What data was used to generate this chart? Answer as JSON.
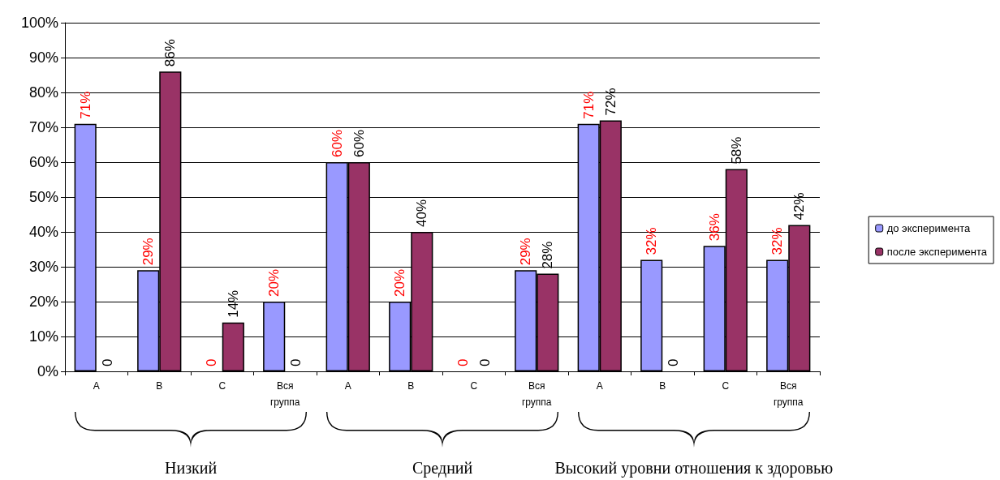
{
  "chart_data": {
    "type": "bar",
    "categories": [
      "A",
      "B",
      "C",
      "Вся группа",
      "A",
      "B",
      "C",
      "Вся группа",
      "A",
      "B",
      "C",
      "Вся группа"
    ],
    "series": [
      {
        "name": "до эксперимента",
        "color": "#9999ff",
        "values": [
          71,
          29,
          0,
          20,
          60,
          20,
          0,
          29,
          71,
          32,
          36,
          32
        ],
        "value_labels": [
          "71%",
          "29%",
          "0",
          "20%",
          "60%",
          "20%",
          "0",
          "29%",
          "71%",
          "32%",
          "36%",
          "32%"
        ]
      },
      {
        "name": "после эксперимента",
        "color": "#993366",
        "values": [
          0,
          86,
          14,
          0,
          60,
          40,
          0,
          28,
          72,
          0,
          58,
          42
        ],
        "value_labels": [
          "0",
          "86%",
          "14%",
          "0",
          "60%",
          "40%",
          "0",
          "28%",
          "72%",
          "0",
          "58%",
          "42%"
        ]
      }
    ],
    "ylim": [
      0,
      100
    ],
    "yticks": [
      {
        "value": 0,
        "label": "0%"
      },
      {
        "value": 10,
        "label": "10%"
      },
      {
        "value": 20,
        "label": "20%"
      },
      {
        "value": 30,
        "label": "30%"
      },
      {
        "value": 40,
        "label": "40%"
      },
      {
        "value": 50,
        "label": "50%"
      },
      {
        "value": 60,
        "label": "60%"
      },
      {
        "value": 70,
        "label": "70%"
      },
      {
        "value": 80,
        "label": "80%"
      },
      {
        "value": 90,
        "label": "90%"
      },
      {
        "value": 100,
        "label": "100%"
      }
    ],
    "grid": "y",
    "legend": "right",
    "annotations": [
      "Низкий",
      "Средний",
      "Высокий уровни отношения к здоровью"
    ]
  }
}
